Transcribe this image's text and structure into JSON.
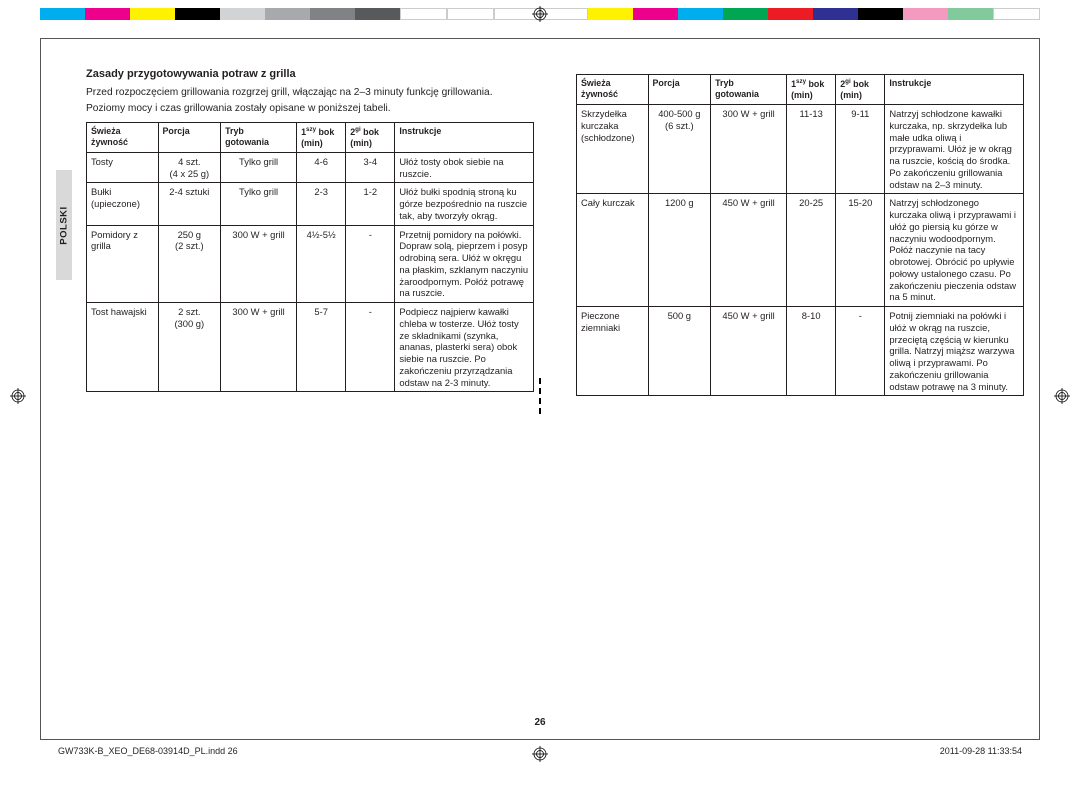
{
  "colorbar": [
    "#00aeef",
    "#ec008c",
    "#fff200",
    "#000000",
    "#d1d3d4",
    "#a7a9ac",
    "#808285",
    "#58595b",
    "#ffffff",
    "#ffffff",
    "#ffffff",
    "#ffffff",
    "#fff200",
    "#ec008c",
    "#00aeef",
    "#00a651",
    "#ed1c24",
    "#2e3192",
    "#000000",
    "#f49ac1",
    "#82ca9c",
    "#ffffff"
  ],
  "lang_tab": "POLSKI",
  "section_title": "Zasady przygotowywania potraw z grilla",
  "intro_p1": "Przed rozpoczęciem grillowania rozgrzej grill, włączając na 2–3 minuty funkcję grillowania.",
  "intro_p2": "Poziomy mocy i czas grillowania zostały opisane w poniższej tabeli.",
  "headers": {
    "food": "Świeża żywność",
    "portion": "Porcja",
    "mode": "Tryb gotowania",
    "side1_a": "1",
    "side1_sup": "szy",
    "side1_b": " bok (min)",
    "side2_a": "2",
    "side2_sup": "gi",
    "side2_b": " bok (min)",
    "instr": "Instrukcje"
  },
  "table1": [
    {
      "food": "Tosty",
      "portion": "4 szt.\n(4 x 25 g)",
      "mode": "Tylko grill",
      "s1": "4-6",
      "s2": "3-4",
      "instr": "Ułóż tosty obok siebie na ruszcie."
    },
    {
      "food": "Bułki (upieczone)",
      "portion": "2-4 sztuki",
      "mode": "Tylko grill",
      "s1": "2-3",
      "s2": "1-2",
      "instr": "Ułóż bułki spodnią stroną ku górze bezpośrednio na ruszcie tak, aby tworzyły okrąg."
    },
    {
      "food": "Pomidory z grilla",
      "portion": "250 g\n(2 szt.)",
      "mode": "300 W + grill",
      "s1": "4½-5½",
      "s2": "-",
      "instr": "Przetnij pomidory na połówki. Dopraw solą, pieprzem i posyp odrobiną sera. Ułóż w okręgu na płaskim, szklanym naczyniu żaroodpornym. Połóż potrawę na ruszcie."
    },
    {
      "food": "Tost hawajski",
      "portion": "2 szt.\n(300 g)",
      "mode": "300 W + grill",
      "s1": "5-7",
      "s2": "-",
      "instr": "Podpiecz najpierw kawałki chleba w tosterze. Ułóż tosty ze składnikami (szynka, ananas, plasterki sera) obok siebie na ruszcie. Po zakończeniu przyrządzania odstaw na 2-3 minuty."
    }
  ],
  "table2": [
    {
      "food": "Skrzydełka kurczaka (schłodzone)",
      "portion": "400-500 g\n(6 szt.)",
      "mode": "300 W + grill",
      "s1": "11-13",
      "s2": "9-11",
      "instr": "Natrzyj schłodzone kawałki kurczaka, np. skrzydełka lub małe udka oliwą i przyprawami. Ułóż je w okrąg na ruszcie, kością do środka. Po zakończeniu grillowania odstaw na 2–3 minuty."
    },
    {
      "food": "Cały kurczak",
      "portion": "1200 g",
      "mode": "450 W + grill",
      "s1": "20-25",
      "s2": "15-20",
      "instr": "Natrzyj schłodzonego kurczaka oliwą i przyprawami i ułóż go piersią ku górze w naczyniu wodoodpornym. Połóż naczynie na tacy obrotowej. Obrócić po upływie połowy ustalonego czasu. Po zakończeniu pieczenia odstaw na 5 minut."
    },
    {
      "food": "Pieczone ziemniaki",
      "portion": "500 g",
      "mode": "450 W + grill",
      "s1": "8-10",
      "s2": "-",
      "instr": "Potnij ziemniaki na połówki i ułóż w okrąg na ruszcie, przeciętą częścią w kierunku grilla. Natrzyj miąższ warzywa oliwą i przyprawami. Po zakończeniu grillowania odstaw potrawę na 3 minuty."
    }
  ],
  "page_number": "26",
  "footer_left": "GW733K-B_XEO_DE68-03914D_PL.indd   26",
  "footer_right": "2011-09-28   11:33:54",
  "col_widths": {
    "food": "16%",
    "portion": "14%",
    "mode": "17%",
    "s1": "11%",
    "s2": "11%",
    "instr": "31%"
  }
}
